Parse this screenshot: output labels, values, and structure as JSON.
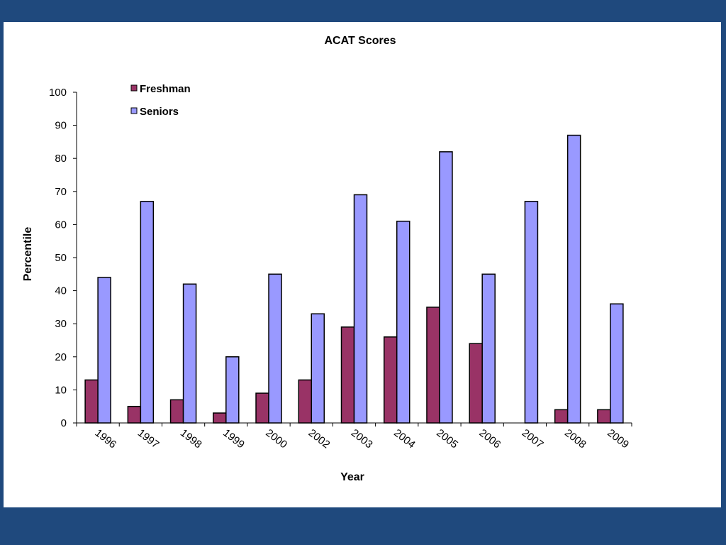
{
  "theme": {
    "background": "#1f497d",
    "panel": "#ffffff"
  },
  "chart_data": {
    "type": "bar",
    "title": "ACAT Scores",
    "xlabel": "Year",
    "ylabel": "Percentile",
    "ylim": [
      0,
      100
    ],
    "yticks": [
      0,
      10,
      20,
      30,
      40,
      50,
      60,
      70,
      80,
      90,
      100
    ],
    "categories": [
      "1996",
      "1997",
      "1998",
      "1999",
      "2000",
      "2002",
      "2003",
      "2004",
      "2005",
      "2006",
      "2007",
      "2008",
      "2009"
    ],
    "series": [
      {
        "name": "Freshman",
        "color": "#993366",
        "values": [
          13,
          5,
          7,
          3,
          9,
          13,
          29,
          26,
          35,
          24,
          null,
          4,
          4
        ]
      },
      {
        "name": "Seniors",
        "color": "#9999ff",
        "values": [
          44,
          67,
          42,
          20,
          45,
          33,
          69,
          61,
          82,
          45,
          67,
          87,
          36
        ]
      }
    ],
    "grid": false,
    "legend": "top-left inside plot"
  }
}
